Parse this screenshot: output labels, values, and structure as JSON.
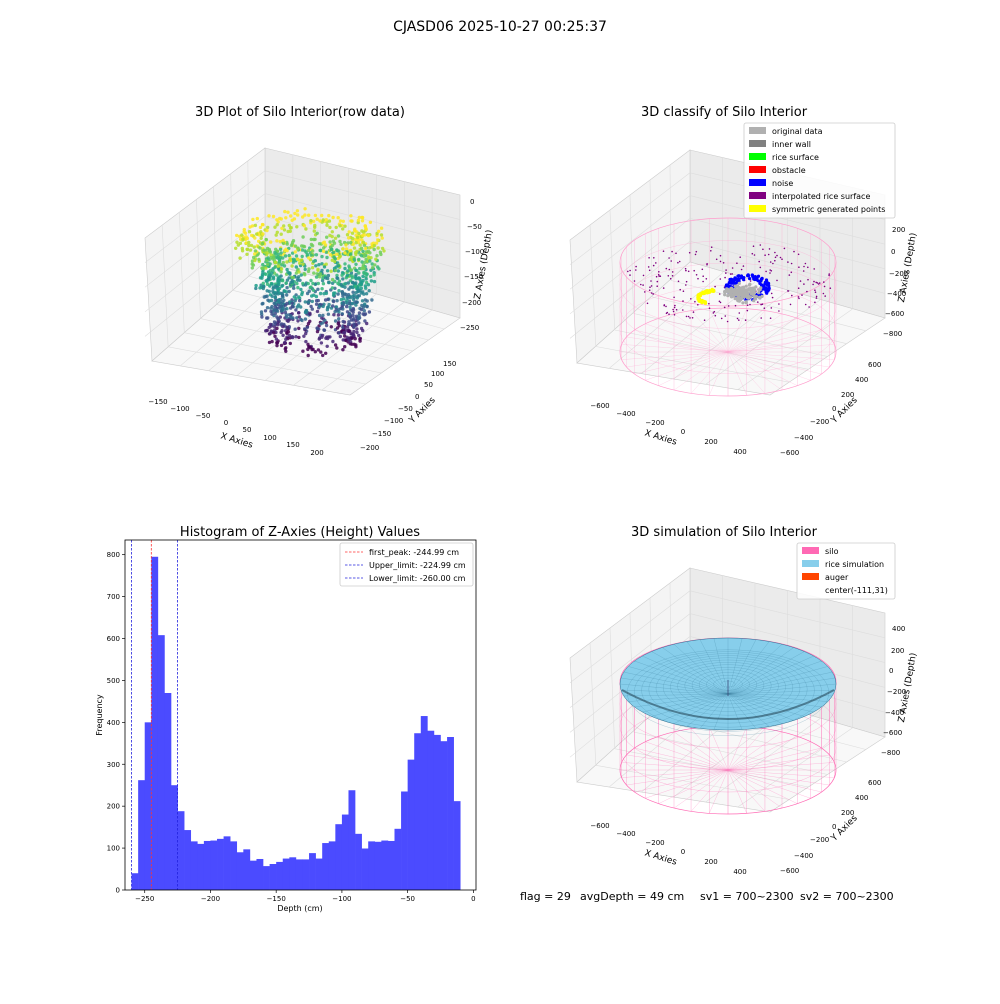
{
  "suptitle": "CJASD06 2025-10-27 00:25:37",
  "status_line": {
    "flag": "flag = 29",
    "avg_depth": "avgDepth = 49 cm",
    "sv1": "sv1 = 700~2300",
    "sv2": "sv2 = 700~2300"
  },
  "colors": {
    "histogram_bar": "#4b4bff",
    "first_peak_line": "#ff3333",
    "limit_line": "#2222dd",
    "silo_pink": "#ff69b4",
    "rice_blue": "#87ceeb",
    "noise_blue": "#0000ff",
    "symmetric_yellow": "#ffff00",
    "interpolated_purple": "#800080",
    "grey_points": "#b0b0b0"
  },
  "chart_data": [
    {
      "type": "scatter",
      "title": "3D Plot of Silo Interior(row data)",
      "xlabel": "X Axies",
      "ylabel": "Y Axies",
      "zlabel": "Z Axies (Depth)",
      "x_ticks": [
        "−150",
        "−100",
        "−50",
        "0",
        "50",
        "100",
        "150",
        "200"
      ],
      "y_ticks": [
        "150",
        "100",
        "50",
        "0",
        "−50",
        "−100",
        "−150",
        "−200"
      ],
      "z_ticks": [
        "0",
        "−50",
        "−100",
        "−150",
        "−200",
        "−250"
      ],
      "colormap": "viridis"
    },
    {
      "type": "scatter",
      "title": "3D classify of Silo Interior",
      "xlabel": "X Axies",
      "ylabel": "Y Axies",
      "zlabel": "Z Axies (Depth)",
      "x_ticks": [
        "−600",
        "−400",
        "−200",
        "0",
        "200",
        "400"
      ],
      "y_ticks": [
        "600",
        "400",
        "200",
        "0",
        "−200",
        "−400",
        "−600"
      ],
      "z_ticks": [
        "200",
        "0",
        "−200",
        "−400",
        "−600",
        "−800"
      ],
      "legend": [
        {
          "label": "original data",
          "color": "#b0b0b0"
        },
        {
          "label": "inner wall",
          "color": "#808080"
        },
        {
          "label": "rice surface",
          "color": "#00ff00"
        },
        {
          "label": "obstacle",
          "color": "#ff0000"
        },
        {
          "label": "noise",
          "color": "#0000ff"
        },
        {
          "label": "interpolated rice surface",
          "color": "#800080"
        },
        {
          "label": "symmetric generated points",
          "color": "#ffff00"
        }
      ]
    },
    {
      "type": "bar",
      "title": "Histogram of Z-Axies (Height) Values",
      "xlabel": "Depth (cm)",
      "ylabel": "Frequency",
      "xlim": [
        -265,
        2
      ],
      "ylim": [
        0,
        835
      ],
      "x_ticks": [
        -250,
        -200,
        -150,
        -100,
        -50,
        0
      ],
      "x_tick_labels": [
        "−250",
        "−200",
        "−150",
        "−100",
        "−50",
        "0"
      ],
      "y_ticks": [
        0,
        100,
        200,
        300,
        400,
        500,
        600,
        700,
        800
      ],
      "bin_start": -260,
      "bin_width": 5,
      "values": [
        40,
        262,
        400,
        795,
        608,
        470,
        250,
        188,
        143,
        116,
        110,
        117,
        118,
        122,
        128,
        116,
        90,
        97,
        70,
        74,
        57,
        62,
        67,
        75,
        78,
        73,
        73,
        88,
        75,
        112,
        116,
        157,
        180,
        238,
        134,
        99,
        116,
        115,
        118,
        117,
        146,
        235,
        311,
        374,
        415,
        380,
        370,
        355,
        365,
        212
      ],
      "vlines": [
        {
          "x": -244.99,
          "label": "first_peak: -244.99 cm",
          "style": "first_peak"
        },
        {
          "x": -224.99,
          "label": "Upper_limit: -224.99 cm",
          "style": "limit"
        },
        {
          "x": -260.0,
          "label": "Lower_limit: -260.00 cm",
          "style": "limit"
        }
      ],
      "legend_placement": "top-right"
    },
    {
      "type": "area",
      "title": "3D simulation of Silo Interior",
      "xlabel": "X Axies",
      "ylabel": "Y Axies",
      "zlabel": "Z Axies (Depth)",
      "x_ticks": [
        "−600",
        "−400",
        "−200",
        "0",
        "200",
        "400"
      ],
      "y_ticks": [
        "600",
        "400",
        "200",
        "0",
        "−200",
        "−400",
        "−600"
      ],
      "z_ticks": [
        "400",
        "200",
        "0",
        "−200",
        "−400",
        "−600",
        "−800"
      ],
      "legend": [
        {
          "label": "silo",
          "color": "#ff69b4"
        },
        {
          "label": "rice simulation",
          "color": "#87ceeb"
        },
        {
          "label": "auger",
          "color": "#ff4500"
        },
        {
          "label": "center(-111,31)",
          "color": ""
        }
      ]
    }
  ]
}
